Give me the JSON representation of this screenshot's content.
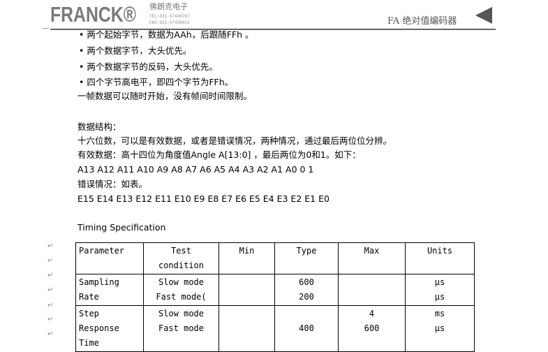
{
  "header": {
    "logo": "FRANCK®",
    "company": "佛朗克电子",
    "tel": "TEL:021-57436767",
    "fax": "FAX:021-57436611",
    "doc_title": "FA 绝对值编码器"
  },
  "lines": [
    "• 两个起始字节，数据为AAh，后跟随FFh 。",
    "• 两个数据字节，大头优先。",
    "• 两个数据字节的反码，大头优先。",
    "• 四个字节高电平，即四个字节为FFh。",
    "一帧数据可以随时开始，没有帧间时间限制。",
    "",
    "数据结构：",
    "十六位数，可以是有效数据，或者是错误情况，两种情况，通过最后两位位分辨。",
    "有效数据：高十四位为角度值Angle A[13:0] ，最后两位为0和1。如下：",
    "A13 A12 A11 A10 A9 A8 A7 A6 A5 A4 A3 A2 A1 A0 0 1",
    "错误情况：如表。",
    "E15 E14 E13 E12 E11 E10 E9 E8 E7 E6 E5 E4 E3 E2 E1 E0",
    "",
    "Timing Specification"
  ],
  "table": {
    "headers": [
      "Parameter",
      "Test condition",
      "Min",
      "Type",
      "Max",
      "Units"
    ],
    "rows": [
      [
        "Sampling\nRate",
        "Slow mode\nFast mode(",
        "",
        "600\n200",
        "",
        "µs\nµs"
      ],
      [
        "Step\nResponse\nTime",
        "Slow mode\nFast mode",
        "",
        "\n400",
        "4\n600",
        "ms\nµs"
      ]
    ]
  }
}
